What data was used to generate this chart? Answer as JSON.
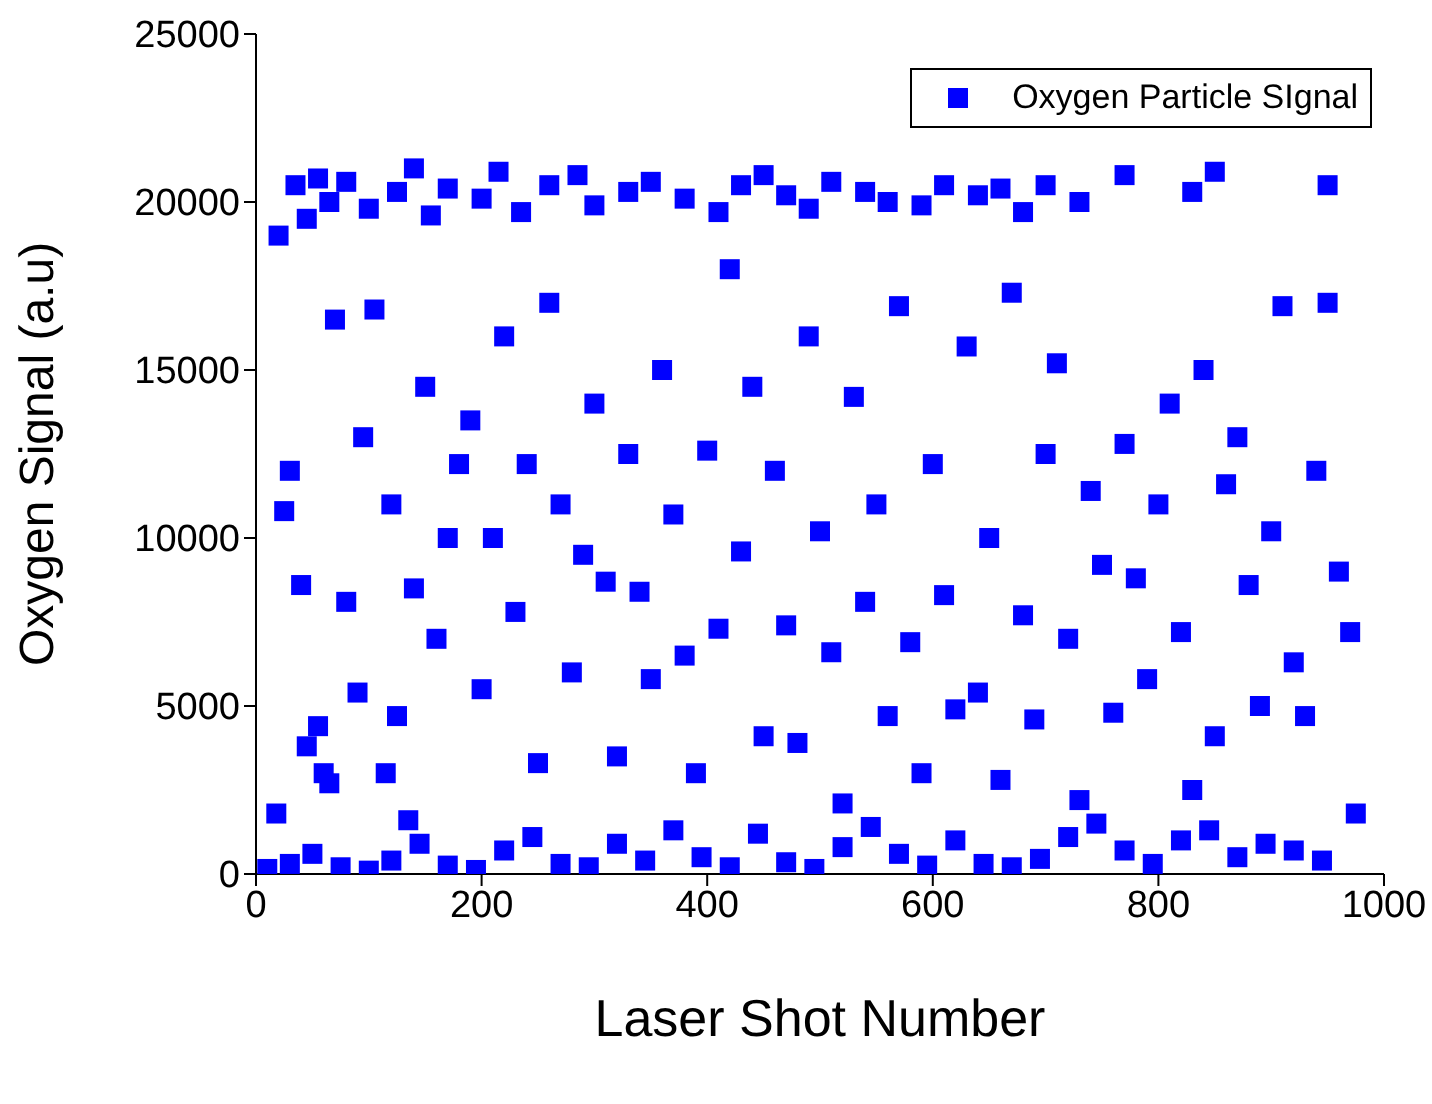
{
  "chart_data": {
    "type": "scatter",
    "xlabel": "Laser Shot Number",
    "ylabel": "Oxygen Signal (a.u)",
    "xlim": [
      0,
      1000
    ],
    "xticks": [
      0,
      200,
      400,
      600,
      800,
      1000
    ],
    "ylim": [
      0,
      25000
    ],
    "yticks": [
      0,
      5000,
      10000,
      15000,
      20000,
      25000
    ],
    "legend": "top right",
    "marker": "square",
    "grid": false,
    "series": [
      {
        "name": "Oxygen Particle SIgnal",
        "color": "#0000ff",
        "x": [
          20,
          35,
          45,
          55,
          65,
          80,
          100,
          125,
          140,
          155,
          170,
          200,
          215,
          235,
          260,
          285,
          300,
          330,
          350,
          380,
          410,
          430,
          450,
          470,
          490,
          510,
          540,
          560,
          590,
          610,
          640,
          660,
          680,
          700,
          730,
          770,
          830,
          850,
          950,
          18,
          25,
          30,
          40,
          45,
          55,
          60,
          65,
          70,
          80,
          90,
          95,
          105,
          115,
          120,
          125,
          135,
          140,
          150,
          160,
          170,
          180,
          190,
          200,
          210,
          220,
          230,
          240,
          250,
          260,
          270,
          280,
          290,
          300,
          310,
          320,
          330,
          340,
          350,
          360,
          370,
          380,
          390,
          400,
          410,
          420,
          430,
          440,
          450,
          460,
          470,
          480,
          490,
          500,
          510,
          520,
          530,
          540,
          550,
          560,
          570,
          580,
          590,
          600,
          610,
          620,
          630,
          640,
          650,
          660,
          670,
          680,
          690,
          700,
          710,
          720,
          730,
          740,
          750,
          760,
          770,
          780,
          790,
          800,
          810,
          820,
          830,
          840,
          850,
          860,
          870,
          880,
          890,
          900,
          910,
          920,
          930,
          940,
          950,
          960,
          970,
          975,
          10,
          30,
          50,
          75,
          100,
          120,
          145,
          170,
          195,
          220,
          245,
          270,
          295,
          320,
          345,
          370,
          395,
          420,
          445,
          470,
          495,
          520,
          545,
          570,
          595,
          620,
          645,
          670,
          695,
          720,
          745,
          770,
          795,
          820,
          845,
          870,
          895,
          920,
          945
        ],
        "values": [
          19000,
          20500,
          19500,
          20700,
          20000,
          20600,
          19800,
          20300,
          21000,
          19600,
          20400,
          20100,
          20900,
          19700,
          20500,
          20800,
          19900,
          20300,
          20600,
          20100,
          19700,
          20500,
          20800,
          20200,
          19800,
          20600,
          20300,
          20000,
          19900,
          20500,
          20200,
          20400,
          19700,
          20500,
          20000,
          20800,
          20300,
          20900,
          20500,
          1800,
          10800,
          12000,
          8600,
          3800,
          4400,
          3000,
          2700,
          16500,
          8100,
          5400,
          13000,
          16800,
          3000,
          11000,
          4700,
          1600,
          8500,
          14500,
          7000,
          10000,
          12200,
          13500,
          5500,
          10000,
          16000,
          7800,
          12200,
          3300,
          17000,
          11000,
          6000,
          9500,
          14000,
          8700,
          3500,
          12500,
          8400,
          5800,
          15000,
          10700,
          6500,
          3000,
          12600,
          7300,
          18000,
          9600,
          14500,
          4100,
          12000,
          7400,
          3900,
          16000,
          10200,
          6600,
          2100,
          14200,
          8100,
          11000,
          4700,
          16900,
          6900,
          3000,
          12200,
          8300,
          4900,
          15700,
          5400,
          10000,
          2800,
          17300,
          7700,
          4600,
          12500,
          15200,
          7000,
          2200,
          11400,
          9200,
          4800,
          12800,
          8800,
          5800,
          11000,
          14000,
          7200,
          2500,
          15000,
          4100,
          11600,
          13000,
          8600,
          5000,
          10200,
          16900,
          6300,
          4700,
          12000,
          17000,
          9000,
          7200,
          1800,
          150,
          300,
          600,
          200,
          100,
          400,
          900,
          250,
          120,
          700,
          1100,
          300,
          200,
          900,
          400,
          1300,
          500,
          200,
          1200,
          350,
          150,
          800,
          1400,
          600,
          250,
          1000,
          300,
          200,
          450,
          1100,
          1500,
          700,
          300,
          1000,
          1300,
          500,
          900,
          700,
          400
        ]
      }
    ]
  }
}
